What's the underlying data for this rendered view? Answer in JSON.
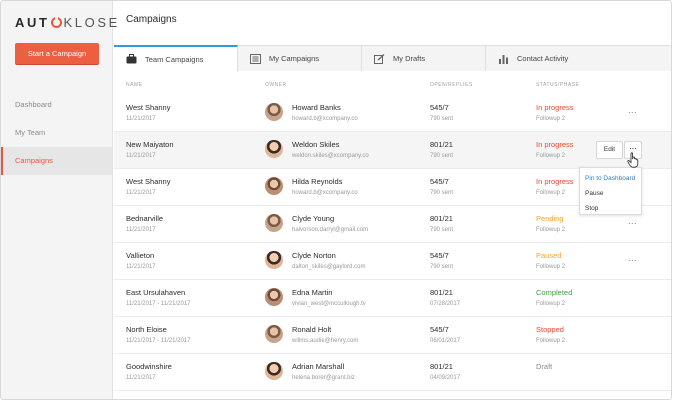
{
  "sidebar": {
    "logo_left": "AUT",
    "logo_right": "KLOSE",
    "start_button": "Start a Campaign",
    "nav": [
      {
        "label": "Dashboard"
      },
      {
        "label": "My Team"
      },
      {
        "label": "Campaigns",
        "active": true
      }
    ]
  },
  "main": {
    "title": "Campaigns",
    "tabs": [
      {
        "label": "Team Campaigns",
        "icon": "briefcase-icon"
      },
      {
        "label": "My Campaigns",
        "icon": "list-icon"
      },
      {
        "label": "My Drafts",
        "icon": "edit-icon"
      },
      {
        "label": "Contact Activity",
        "icon": "bar-chart-icon"
      }
    ],
    "columns": {
      "name": "NAME",
      "owner": "OWNER",
      "open_replies": "OPEN/REPLIES",
      "status_phase": "STATUS/PHASE"
    },
    "rows": [
      {
        "name": "West Shanny",
        "date": "11/21/2017",
        "owner": "Howard Banks",
        "email": "howard.b@xcompany.co",
        "open": "545/7",
        "sent": "790 sent",
        "status": "In progress",
        "status_color": "#e8492f",
        "phase": "Followup 2",
        "more": "..."
      },
      {
        "name": "New Maiyaton",
        "date": "11/21/2017",
        "owner": "Weldon Skiles",
        "email": "weldon.skiles@xcompany.co",
        "open": "801/21",
        "sent": "790 sent",
        "status": "In progress",
        "status_color": "#e8492f",
        "phase": "Followup 2",
        "more": "..."
      },
      {
        "name": "West Shanny",
        "date": "11/21/2017",
        "owner": "Hilda Reynolds",
        "email": "howard.b@xcompany.co",
        "open": "545/7",
        "sent": "790 sent",
        "status": "In progress",
        "status_color": "#e8492f",
        "phase": "Followup 2",
        "more": "..."
      },
      {
        "name": "Bednarville",
        "date": "11/21/2017",
        "owner": "Clyde Young",
        "email": "halvorson.darryl@gmail.com",
        "open": "801/21",
        "sent": "790 sent",
        "status": "Pending",
        "status_color": "#f0a531",
        "phase": "Followup 2",
        "more": "..."
      },
      {
        "name": "Vallieton",
        "date": "11/21/2017",
        "owner": "Clyde Norton",
        "email": "dalton_skiles@gaylord.com",
        "open": "545/7",
        "sent": "790 sent",
        "status": "Paused",
        "status_color": "#f0a531",
        "phase": "Followup 2",
        "more": "..."
      },
      {
        "name": "East Ursulahaven",
        "date": "11/21/2017 - 11/21/2017",
        "owner": "Edna Martin",
        "email": "vivian_west@mccullough.tv",
        "open": "801/21",
        "sent": "07/28/2017",
        "status": "Completed",
        "status_color": "#43a047",
        "phase": "Followup 2",
        "more": ""
      },
      {
        "name": "North Eloise",
        "date": "11/21/2017 - 11/21/2017",
        "owner": "Ronald Holt",
        "email": "willms.audie@henry.com",
        "open": "545/7",
        "sent": "06/01/2017",
        "status": "Stopped",
        "status_color": "#e8492f",
        "phase": "Followup 2",
        "more": ""
      },
      {
        "name": "Goodwinshire",
        "date": "11/21/2017",
        "owner": "Adrian Marshall",
        "email": "helena.borer@grant.biz",
        "open": "801/21",
        "sent": "04/09/2017",
        "status": "Draft",
        "status_color": "#888888",
        "phase": "",
        "more": ""
      }
    ],
    "row_actions": {
      "edit": "Edit",
      "more": "..."
    },
    "dropdown": [
      "Pin to Dashboard",
      "Pause",
      "Stop"
    ]
  },
  "colors": {
    "accent": "#ec6041",
    "tab_active": "#2e9be0",
    "link": "#2e7dd1"
  }
}
